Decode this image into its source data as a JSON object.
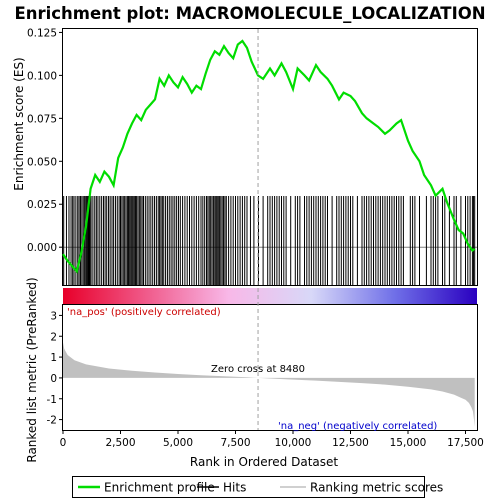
{
  "chart_data": {
    "type": "line",
    "title": "Enrichment plot: MACROMOLECULE_LOCALIZATION",
    "xlabel": "Rank in Ordered Dataset",
    "ylabel_top": "Enrichment score (ES)",
    "ylabel_bottom": "Ranked list metric (PreRanked)",
    "x_range": [
      0,
      18000
    ],
    "es_ylim": [
      -0.022,
      0.127
    ],
    "metric_ylim": [
      -2.5,
      3.5
    ],
    "x_ticks": [
      0,
      2500,
      5000,
      7500,
      10000,
      12500,
      15000,
      17500
    ],
    "x_tick_labels": [
      "0",
      "2,500",
      "5,000",
      "7,500",
      "10,000",
      "12,500",
      "15,000",
      "17,500"
    ],
    "es_ticks": [
      0.0,
      0.025,
      0.05,
      0.075,
      0.1,
      0.125
    ],
    "es_tick_labels": [
      "0.000",
      "0.025",
      "0.050",
      "0.075",
      "0.100",
      "0.125"
    ],
    "metric_ticks": [
      -2,
      -1,
      0,
      1,
      2,
      3
    ],
    "metric_tick_labels": [
      "-2",
      "-1",
      "0",
      "1",
      "2",
      "3"
    ],
    "series": [
      {
        "name": "Enrichment profile",
        "color": "#00dd00",
        "x": [
          0,
          200,
          400,
          600,
          800,
          1000,
          1200,
          1400,
          1600,
          1800,
          2000,
          2200,
          2400,
          2600,
          2800,
          3000,
          3200,
          3400,
          3600,
          3800,
          4000,
          4200,
          4400,
          4600,
          4800,
          5000,
          5200,
          5400,
          5600,
          5800,
          6000,
          6200,
          6400,
          6600,
          6800,
          7000,
          7200,
          7400,
          7600,
          7800,
          8000,
          8200,
          8480,
          8700,
          9000,
          9200,
          9500,
          9700,
          10000,
          10200,
          10500,
          10700,
          11000,
          11200,
          11500,
          11700,
          12000,
          12200,
          12500,
          12700,
          13000,
          13200,
          13500,
          13700,
          14000,
          14200,
          14500,
          14700,
          15000,
          15200,
          15500,
          15700,
          16000,
          16200,
          16500,
          16700,
          17000,
          17200,
          17400,
          17600,
          17800,
          17900
        ],
        "y": [
          -0.004,
          -0.008,
          -0.011,
          -0.014,
          -0.003,
          0.012,
          0.034,
          0.042,
          0.038,
          0.044,
          0.041,
          0.036,
          0.052,
          0.058,
          0.066,
          0.072,
          0.077,
          0.074,
          0.08,
          0.083,
          0.086,
          0.098,
          0.094,
          0.1,
          0.096,
          0.093,
          0.099,
          0.095,
          0.09,
          0.094,
          0.092,
          0.101,
          0.109,
          0.114,
          0.112,
          0.117,
          0.113,
          0.11,
          0.118,
          0.12,
          0.116,
          0.108,
          0.1,
          0.098,
          0.104,
          0.1,
          0.107,
          0.102,
          0.092,
          0.104,
          0.1,
          0.097,
          0.106,
          0.102,
          0.098,
          0.094,
          0.086,
          0.09,
          0.088,
          0.085,
          0.078,
          0.075,
          0.072,
          0.07,
          0.066,
          0.068,
          0.072,
          0.074,
          0.062,
          0.056,
          0.05,
          0.042,
          0.036,
          0.03,
          0.034,
          0.026,
          0.016,
          0.01,
          0.008,
          0.002,
          -0.002,
          -0.001
        ]
      }
    ],
    "hits": [
      30,
      150,
      260,
      350,
      420,
      480,
      560,
      640,
      700,
      760,
      820,
      880,
      940,
      990,
      1030,
      1070,
      1100,
      1130,
      1170,
      1220,
      1300,
      1380,
      1450,
      1520,
      1600,
      1680,
      1760,
      1830,
      1900,
      1980,
      2050,
      2130,
      2200,
      2280,
      2360,
      2440,
      2500,
      2560,
      2620,
      2680,
      2740,
      2800,
      2850,
      2900,
      2950,
      3000,
      3050,
      3100,
      3150,
      3200,
      3260,
      3320,
      3380,
      3440,
      3500,
      3580,
      3660,
      3740,
      3820,
      3900,
      3980,
      4060,
      4140,
      4200,
      4260,
      4320,
      4380,
      4460,
      4540,
      4620,
      4700,
      4780,
      4860,
      4940,
      5020,
      5100,
      5200,
      5300,
      5400,
      5500,
      5600,
      5700,
      5800,
      5900,
      6000,
      6080,
      6160,
      6240,
      6300,
      6360,
      6420,
      6480,
      6540,
      6600,
      6650,
      6700,
      6750,
      6800,
      6860,
      6920,
      6980,
      7040,
      7100,
      7200,
      7300,
      7400,
      7500,
      7600,
      7700,
      7800,
      7900,
      8000,
      8150,
      8300,
      8500,
      8700,
      8900,
      9000,
      9100,
      9200,
      9300,
      9400,
      9500,
      9600,
      9700,
      9900,
      10100,
      10200,
      10300,
      10500,
      10600,
      10700,
      10800,
      10900,
      11000,
      11100,
      11200,
      11300,
      11400,
      11500,
      11700,
      11900,
      12000,
      12100,
      12200,
      12300,
      12400,
      12500,
      12600,
      12800,
      13000,
      13100,
      13200,
      13300,
      13400,
      13500,
      13600,
      13700,
      13800,
      13900,
      14000,
      14100,
      14200,
      14300,
      14400,
      14500,
      14600,
      14700,
      14800,
      15100,
      15200,
      15300,
      15500,
      15800,
      16000,
      16100,
      16200,
      16300,
      16500,
      16600,
      16800,
      17000,
      17100,
      17300,
      17500,
      17600,
      17700,
      17800,
      17850,
      17900
    ],
    "colorbar": {
      "colors": [
        "#e8002a",
        "#f05a8a",
        "#f8b8e8",
        "#d8d8f8",
        "#7070e8",
        "#2a00c0"
      ],
      "pos_label": "'na_pos' (positively correlated)",
      "neg_label": "'na_neg' (negatively correlated)"
    },
    "zero_cross": {
      "x": 8480,
      "label": "Zero cross at 8480"
    },
    "metric": {
      "x": [
        0,
        50,
        200,
        500,
        1000,
        2000,
        3000,
        4000,
        5000,
        6000,
        7000,
        8000,
        8480,
        9000,
        10000,
        11000,
        12000,
        13000,
        14000,
        15000,
        16000,
        16500,
        17000,
        17300,
        17500,
        17650,
        17750,
        17820,
        17870,
        17900
      ],
      "y": [
        1.7,
        1.4,
        1.1,
        0.85,
        0.65,
        0.45,
        0.34,
        0.26,
        0.19,
        0.13,
        0.08,
        0.03,
        0.0,
        -0.03,
        -0.08,
        -0.13,
        -0.19,
        -0.25,
        -0.32,
        -0.42,
        -0.55,
        -0.65,
        -0.8,
        -0.95,
        -1.05,
        -1.2,
        -1.4,
        -1.6,
        -2.0,
        -2.35
      ]
    },
    "legend": {
      "position": "bottom",
      "items": [
        "Enrichment profile",
        "Hits",
        "Ranking metric scores"
      ],
      "colors": [
        "#00dd00",
        "#000000",
        "#c0c0c0"
      ]
    }
  }
}
